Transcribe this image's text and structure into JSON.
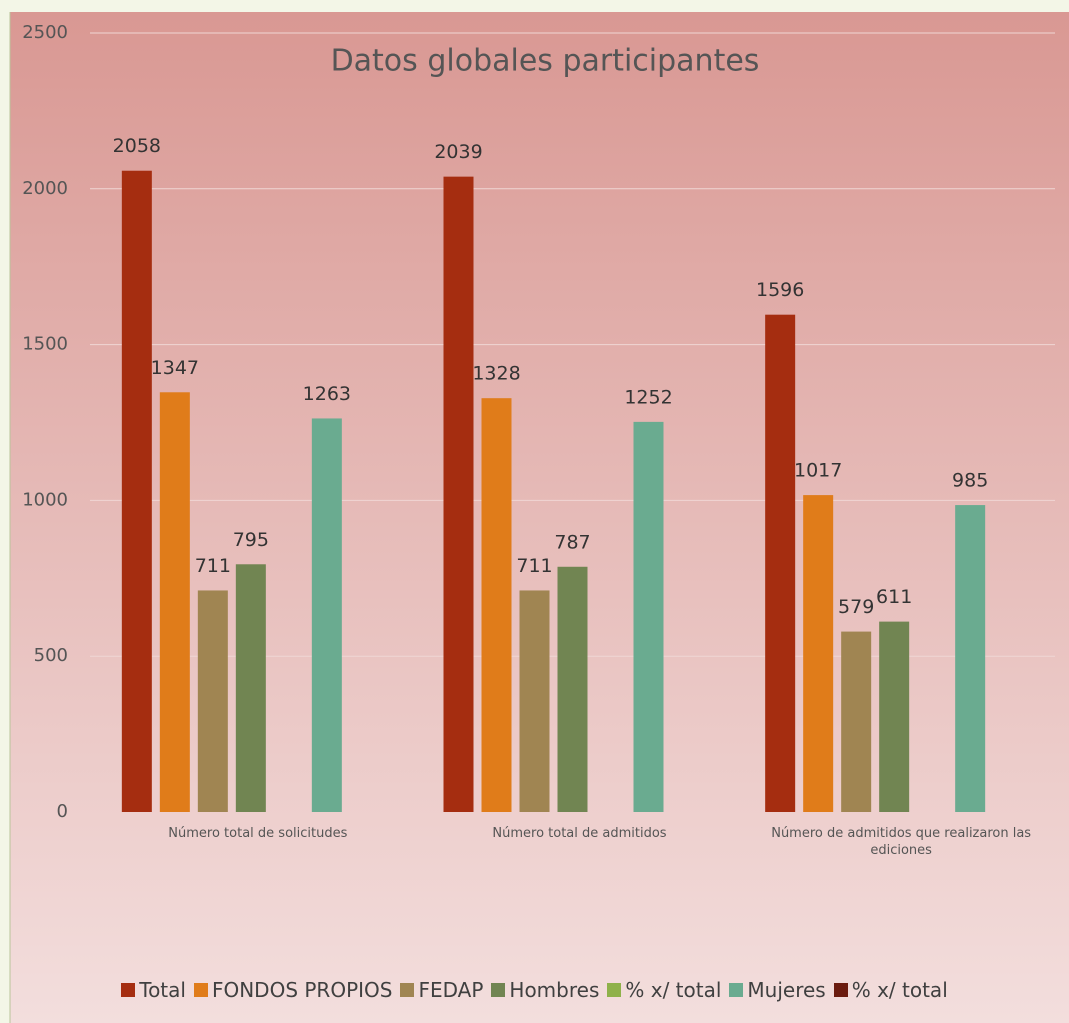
{
  "chart_data": {
    "type": "bar",
    "title": "Datos globales participantes",
    "categories": [
      "Número total de solicitudes",
      "Número total de admitidos",
      "Número de admitidos que realizaron las ediciones"
    ],
    "series": [
      {
        "name": "Total",
        "color": "#a52d10",
        "values": [
          2058,
          2039,
          1596
        ]
      },
      {
        "name": "FONDOS PROPIOS",
        "color": "#e07c1a",
        "values": [
          1347,
          1328,
          1017
        ]
      },
      {
        "name": "FEDAP",
        "color": "#a08552",
        "values": [
          711,
          711,
          579
        ]
      },
      {
        "name": "Hombres",
        "color": "#718552",
        "values": [
          795,
          787,
          611
        ]
      },
      {
        "name": "% x/ total",
        "color": "#8fb14a",
        "values": [
          null,
          null,
          null
        ]
      },
      {
        "name": "Mujeres",
        "color": "#6aab90",
        "values": [
          1263,
          1252,
          985
        ]
      },
      {
        "name": "% x/ total",
        "color": "#6b1b0f",
        "values": [
          null,
          null,
          null
        ]
      }
    ],
    "ylim": [
      0,
      2500
    ],
    "yticks": [
      0,
      500,
      1000,
      1500,
      2000,
      2500
    ],
    "grid": true,
    "legend": "bottom"
  }
}
